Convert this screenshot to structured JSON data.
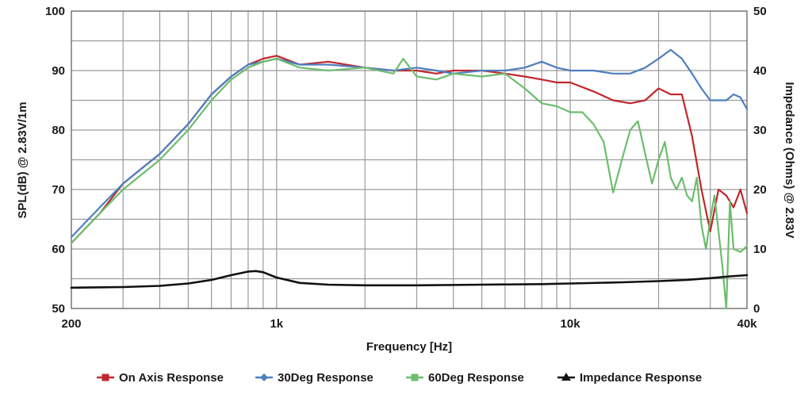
{
  "chart_data": {
    "type": "line",
    "title": "",
    "xlabel": "Frequency [Hz]",
    "ylabel": "SPL(dB) @ 2.83V/1m",
    "y2label": "Impedance (Ohms) @ 2.83V",
    "x_scale": "log",
    "xlim": [
      200,
      40000
    ],
    "ylim": [
      50,
      100
    ],
    "y2lim": [
      0,
      50
    ],
    "grid": true,
    "legend_position": "bottom",
    "x_tick_labels": [
      "200",
      "1k",
      "10k",
      "40k"
    ],
    "x_tick_values": [
      200,
      1000,
      10000,
      40000
    ],
    "y_ticks": [
      "50",
      "60",
      "70",
      "80",
      "90",
      "100"
    ],
    "y2_ticks": [
      "0",
      "10",
      "20",
      "30",
      "40",
      "50"
    ],
    "series": [
      {
        "name": "On Axis Response",
        "color": "#c0282d",
        "marker": "square",
        "axis": "left",
        "x": [
          200,
          250,
          300,
          400,
          500,
          600,
          700,
          800,
          900,
          1000,
          1200,
          1500,
          2000,
          2500,
          3000,
          3500,
          4000,
          5000,
          6000,
          7000,
          8000,
          9000,
          10000,
          12000,
          14000,
          16000,
          18000,
          20000,
          22000,
          24000,
          26000,
          28000,
          30000,
          32000,
          34000,
          36000,
          38000,
          40000
        ],
        "values": [
          61,
          66,
          71,
          76,
          81,
          86,
          89,
          91,
          92,
          92.5,
          91,
          91.5,
          90.5,
          90,
          90,
          89.5,
          90,
          90,
          89.5,
          89,
          88.5,
          88,
          88,
          86.5,
          85,
          84.5,
          85,
          87,
          86,
          86,
          79,
          70,
          63,
          70,
          69,
          67,
          70,
          66
        ]
      },
      {
        "name": "30Deg Response",
        "color": "#4f7ec0",
        "marker": "diamond",
        "axis": "left",
        "x": [
          200,
          250,
          300,
          400,
          500,
          600,
          700,
          800,
          900,
          1000,
          1200,
          1500,
          2000,
          2500,
          3000,
          3500,
          4000,
          5000,
          6000,
          7000,
          8000,
          9000,
          10000,
          12000,
          14000,
          16000,
          18000,
          20000,
          22000,
          24000,
          26000,
          28000,
          30000,
          32000,
          34000,
          36000,
          38000,
          40000
        ],
        "values": [
          62,
          67,
          71,
          76,
          81,
          86,
          89,
          91,
          91.5,
          92,
          91,
          91,
          90.5,
          90,
          90.5,
          90,
          89.5,
          90,
          90,
          90.5,
          91.5,
          90.5,
          90,
          90,
          89.5,
          89.5,
          90.5,
          92,
          93.5,
          92,
          89.5,
          87,
          85,
          85,
          85,
          86,
          85.5,
          83.5
        ]
      },
      {
        "name": "60Deg Response",
        "color": "#6cbd6e",
        "marker": "square",
        "axis": "left",
        "x": [
          200,
          250,
          300,
          400,
          500,
          600,
          700,
          800,
          900,
          1000,
          1200,
          1500,
          2000,
          2500,
          2700,
          3000,
          3500,
          4000,
          5000,
          6000,
          7000,
          8000,
          9000,
          10000,
          11000,
          12000,
          13000,
          14000,
          15000,
          16000,
          17000,
          18000,
          19000,
          20000,
          21000,
          22000,
          23000,
          24000,
          25000,
          26000,
          27000,
          28000,
          29000,
          30000,
          31000,
          32000,
          33000,
          34000,
          35000,
          36000,
          38000,
          40000
        ],
        "values": [
          61,
          66,
          70,
          75,
          80,
          85,
          88.5,
          90.5,
          91.5,
          92,
          90.5,
          90,
          90.5,
          89.5,
          92,
          89,
          88.5,
          89.5,
          89,
          89.5,
          87,
          84.5,
          84,
          83,
          83,
          81,
          78,
          69.5,
          75,
          80,
          81.5,
          76,
          71,
          75,
          78,
          72,
          70,
          72,
          69,
          68,
          72,
          64,
          60,
          65,
          69,
          63,
          57,
          50,
          68,
          60,
          59.5,
          60.5
        ]
      },
      {
        "name": "Impedance Response",
        "color": "#111111",
        "marker": "triangle",
        "axis": "right",
        "x": [
          200,
          300,
          400,
          500,
          600,
          700,
          800,
          850,
          900,
          1000,
          1200,
          1500,
          2000,
          3000,
          5000,
          8000,
          10000,
          15000,
          20000,
          25000,
          30000,
          35000,
          40000
        ],
        "values": [
          3.5,
          3.6,
          3.8,
          4.2,
          4.8,
          5.6,
          6.2,
          6.3,
          6.1,
          5.2,
          4.3,
          4.0,
          3.9,
          3.9,
          4.0,
          4.1,
          4.2,
          4.4,
          4.6,
          4.8,
          5.1,
          5.4,
          5.6
        ]
      }
    ]
  }
}
